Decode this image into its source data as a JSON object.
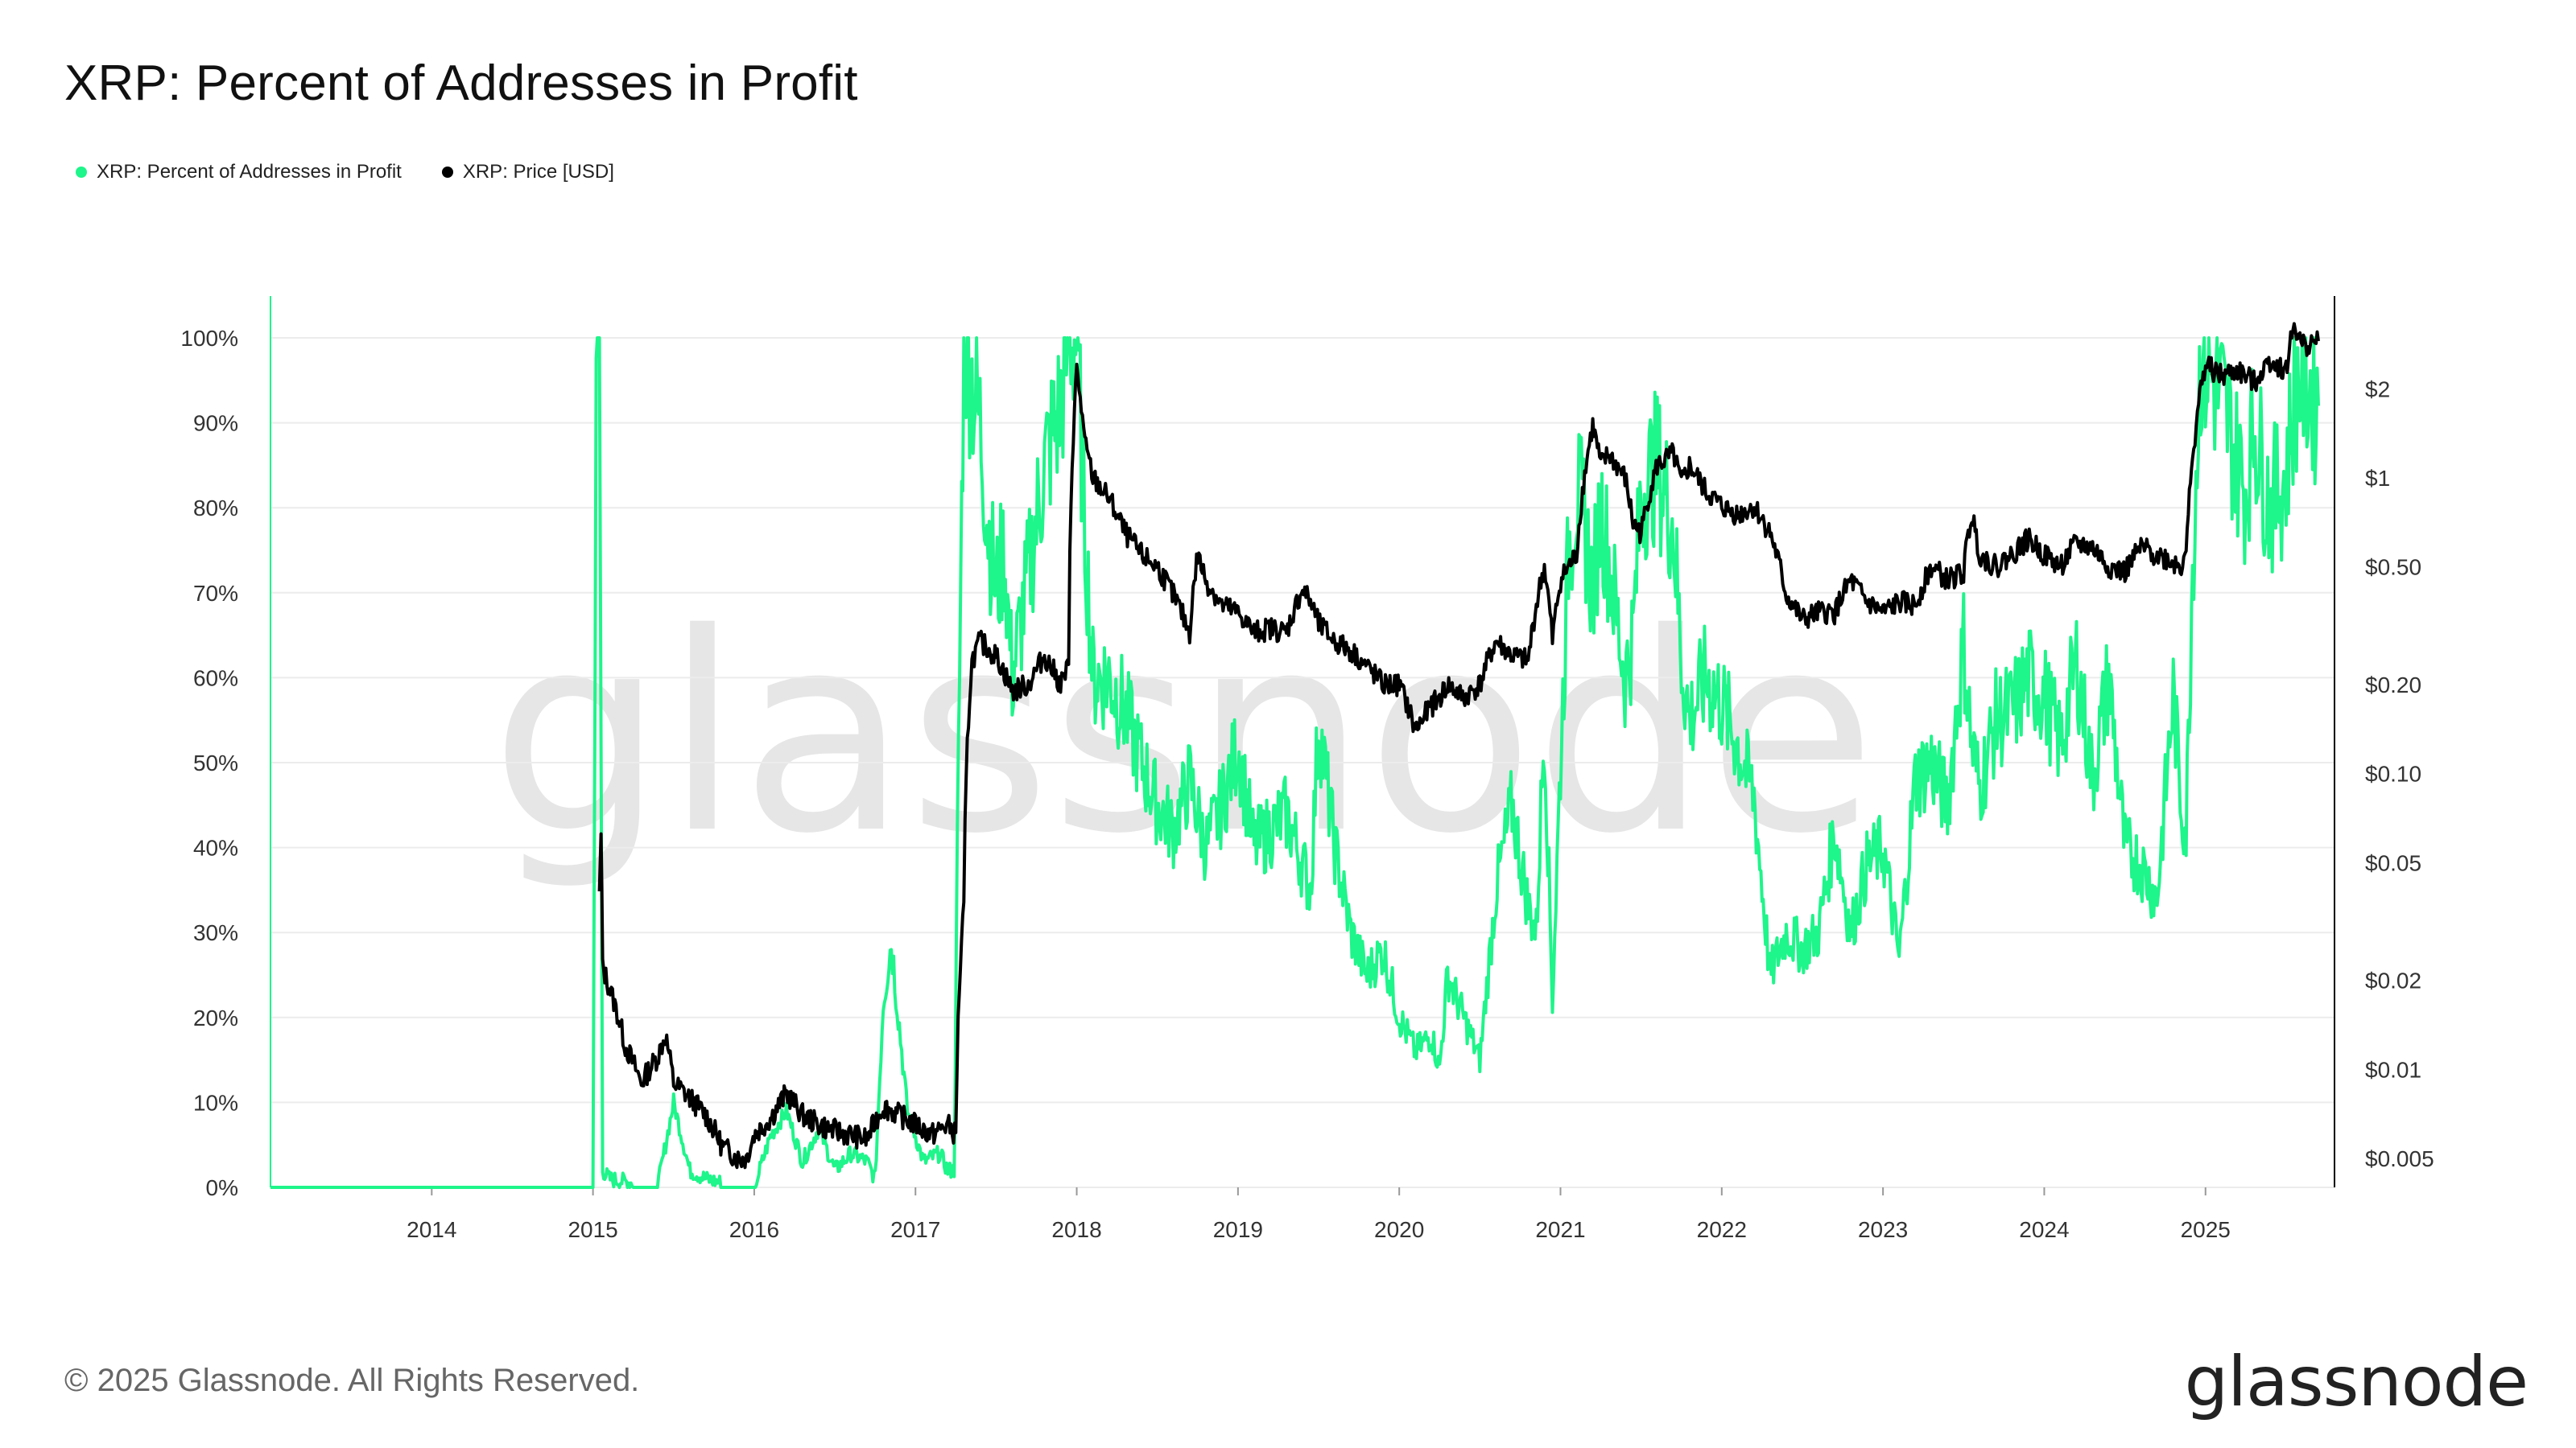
{
  "title": "XRP: Percent of Addresses in Profit",
  "legend": [
    {
      "label": "XRP: Percent of Addresses in Profit",
      "color": "#1ef58a"
    },
    {
      "label": "XRP: Price [USD]",
      "color": "#000000"
    }
  ],
  "watermark": "glassnode",
  "footer": {
    "copyright": "© 2025 Glassnode. All Rights Reserved.",
    "logo": "glassnode"
  },
  "chart_data": {
    "type": "line",
    "title": "XRP: Percent of Addresses in Profit",
    "x_range": [
      2013.0,
      2025.8
    ],
    "x_ticks": [
      "2014",
      "2015",
      "2016",
      "2017",
      "2018",
      "2019",
      "2020",
      "2021",
      "2022",
      "2023",
      "2024",
      "2025"
    ],
    "y_left": {
      "ticks": [
        "0%",
        "10%",
        "20%",
        "30%",
        "40%",
        "50%",
        "60%",
        "70%",
        "80%",
        "90%",
        "100%"
      ],
      "range": [
        0,
        100
      ]
    },
    "y_right": {
      "scale": "log",
      "ticks": [
        "$0.005",
        "$0.01",
        "$0.02",
        "$0.05",
        "$0.10",
        "$0.20",
        "$0.50",
        "$1",
        "$2"
      ],
      "tick_values": [
        0.005,
        0.01,
        0.02,
        0.05,
        0.1,
        0.2,
        0.5,
        1,
        2
      ],
      "range": [
        0.005,
        3.5
      ]
    },
    "grid": true,
    "legend_position": "top-left",
    "series": [
      {
        "name": "XRP: Percent of Addresses in Profit",
        "color": "#1ef58a",
        "axis": "left",
        "x": [
          2013.0,
          2015.0,
          2015.02,
          2015.04,
          2015.06,
          2015.1,
          2015.4,
          2015.5,
          2015.6,
          2015.7,
          2015.9,
          2016.0,
          2016.1,
          2016.2,
          2016.3,
          2016.4,
          2016.5,
          2016.6,
          2016.7,
          2016.75,
          2016.8,
          2016.85,
          2016.95,
          2017.05,
          2017.15,
          2017.2,
          2017.24,
          2017.26,
          2017.3,
          2017.35,
          2017.4,
          2017.45,
          2017.5,
          2017.55,
          2017.6,
          2017.7,
          2017.8,
          2017.9,
          2017.95,
          2018.0,
          2018.05,
          2018.1,
          2018.2,
          2018.3,
          2018.4,
          2018.5,
          2018.6,
          2018.7,
          2018.8,
          2018.9,
          2019.0,
          2019.1,
          2019.2,
          2019.3,
          2019.4,
          2019.45,
          2019.5,
          2019.6,
          2019.7,
          2019.8,
          2019.9,
          2020.0,
          2020.1,
          2020.2,
          2020.25,
          2020.3,
          2020.4,
          2020.5,
          2020.6,
          2020.7,
          2020.8,
          2020.85,
          2020.9,
          2020.95,
          2021.0,
          2021.05,
          2021.1,
          2021.15,
          2021.2,
          2021.25,
          2021.3,
          2021.4,
          2021.45,
          2021.5,
          2021.6,
          2021.7,
          2021.75,
          2021.8,
          2021.9,
          2022.0,
          2022.1,
          2022.2,
          2022.3,
          2022.4,
          2022.5,
          2022.6,
          2022.7,
          2022.8,
          2022.9,
          2023.0,
          2023.1,
          2023.2,
          2023.3,
          2023.4,
          2023.5,
          2023.55,
          2023.6,
          2023.7,
          2023.8,
          2023.9,
          2024.0,
          2024.1,
          2024.2,
          2024.3,
          2024.4,
          2024.5,
          2024.6,
          2024.7,
          2024.8,
          2024.85,
          2024.88,
          2024.92,
          2024.97,
          2025.05,
          2025.1,
          2025.2,
          2025.25,
          2025.3,
          2025.4,
          2025.5,
          2025.55,
          2025.6,
          2025.7
        ],
        "values": [
          0,
          0,
          100,
          100,
          2,
          1,
          0,
          10,
          2,
          1,
          0,
          0,
          6,
          9,
          3,
          7,
          2,
          4,
          3,
          1,
          22,
          29,
          9,
          3,
          4,
          2,
          2,
          40,
          100,
          95,
          90,
          78,
          70,
          75,
          60,
          72,
          85,
          92,
          100,
          100,
          78,
          60,
          60,
          56,
          50,
          45,
          42,
          48,
          40,
          45,
          52,
          40,
          42,
          44,
          38,
          35,
          55,
          40,
          30,
          25,
          28,
          20,
          16,
          18,
          14,
          25,
          20,
          15,
          35,
          45,
          33,
          30,
          55,
          22,
          50,
          75,
          82,
          78,
          70,
          80,
          74,
          60,
          65,
          82,
          85,
          78,
          62,
          55,
          60,
          57,
          52,
          46,
          25,
          30,
          28,
          30,
          42,
          30,
          38,
          40,
          27,
          48,
          50,
          45,
          64,
          52,
          47,
          55,
          56,
          60,
          58,
          52,
          62,
          48,
          60,
          40,
          38,
          34,
          58,
          45,
          42,
          74,
          98,
          95,
          93,
          85,
          82,
          90,
          80,
          84,
          93,
          96,
          92
        ]
      },
      {
        "name": "XRP: Price [USD]",
        "color": "#000000",
        "axis": "right",
        "x": [
          2015.05,
          2015.06,
          2015.1,
          2015.2,
          2015.3,
          2015.4,
          2015.45,
          2015.5,
          2015.6,
          2015.7,
          2015.8,
          2015.9,
          2015.95,
          2016.0,
          2016.1,
          2016.2,
          2016.3,
          2016.4,
          2016.5,
          2016.6,
          2016.7,
          2016.8,
          2016.9,
          2017.0,
          2017.1,
          2017.2,
          2017.25,
          2017.3,
          2017.35,
          2017.4,
          2017.5,
          2017.6,
          2017.7,
          2017.8,
          2017.9,
          2017.95,
          2018.0,
          2018.05,
          2018.1,
          2018.2,
          2018.3,
          2018.4,
          2018.5,
          2018.6,
          2018.7,
          2018.75,
          2018.8,
          2018.9,
          2019.0,
          2019.1,
          2019.2,
          2019.3,
          2019.4,
          2019.45,
          2019.5,
          2019.6,
          2019.7,
          2019.8,
          2019.9,
          2020.0,
          2020.1,
          2020.2,
          2020.25,
          2020.3,
          2020.4,
          2020.5,
          2020.6,
          2020.7,
          2020.8,
          2020.9,
          2020.95,
          2021.0,
          2021.05,
          2021.1,
          2021.2,
          2021.25,
          2021.3,
          2021.4,
          2021.45,
          2021.5,
          2021.6,
          2021.7,
          2021.75,
          2021.8,
          2021.9,
          2022.0,
          2022.1,
          2022.2,
          2022.3,
          2022.4,
          2022.5,
          2022.6,
          2022.7,
          2022.8,
          2022.9,
          2023.0,
          2023.1,
          2023.2,
          2023.3,
          2023.4,
          2023.5,
          2023.55,
          2023.6,
          2023.7,
          2023.8,
          2023.9,
          2024.0,
          2024.1,
          2024.2,
          2024.3,
          2024.4,
          2024.5,
          2024.6,
          2024.7,
          2024.8,
          2024.85,
          2024.88,
          2024.92,
          2024.95,
          2025.0,
          2025.1,
          2025.2,
          2025.3,
          2025.4,
          2025.5,
          2025.55,
          2025.6,
          2025.7
        ],
        "values": [
          0.06,
          0.022,
          0.019,
          0.012,
          0.009,
          0.011,
          0.013,
          0.009,
          0.008,
          0.007,
          0.0055,
          0.005,
          0.005,
          0.006,
          0.0068,
          0.0083,
          0.007,
          0.0065,
          0.0062,
          0.006,
          0.0058,
          0.0075,
          0.007,
          0.0065,
          0.006,
          0.0065,
          0.006,
          0.035,
          0.24,
          0.28,
          0.25,
          0.19,
          0.2,
          0.25,
          0.2,
          0.23,
          2.3,
          1.3,
          1.0,
          0.85,
          0.65,
          0.55,
          0.5,
          0.4,
          0.3,
          0.55,
          0.45,
          0.37,
          0.35,
          0.3,
          0.31,
          0.3,
          0.42,
          0.38,
          0.32,
          0.28,
          0.26,
          0.23,
          0.2,
          0.2,
          0.14,
          0.17,
          0.18,
          0.2,
          0.18,
          0.2,
          0.28,
          0.25,
          0.24,
          0.5,
          0.28,
          0.45,
          0.5,
          0.55,
          1.5,
          1.1,
          1.2,
          1.0,
          0.7,
          0.65,
          1.1,
          1.2,
          0.95,
          1.1,
          0.9,
          0.8,
          0.75,
          0.8,
          0.65,
          0.4,
          0.33,
          0.35,
          0.35,
          0.45,
          0.38,
          0.35,
          0.38,
          0.37,
          0.5,
          0.45,
          0.48,
          0.75,
          0.55,
          0.5,
          0.55,
          0.62,
          0.55,
          0.5,
          0.6,
          0.58,
          0.5,
          0.48,
          0.58,
          0.55,
          0.52,
          0.5,
          0.6,
          1.1,
          1.7,
          2.4,
          2.2,
          2.3,
          2.1,
          2.5,
          2.3,
          3.3,
          2.8,
          2.9
        ],
        "pin_start": [
          2015.04,
          0.04
        ]
      }
    ]
  }
}
